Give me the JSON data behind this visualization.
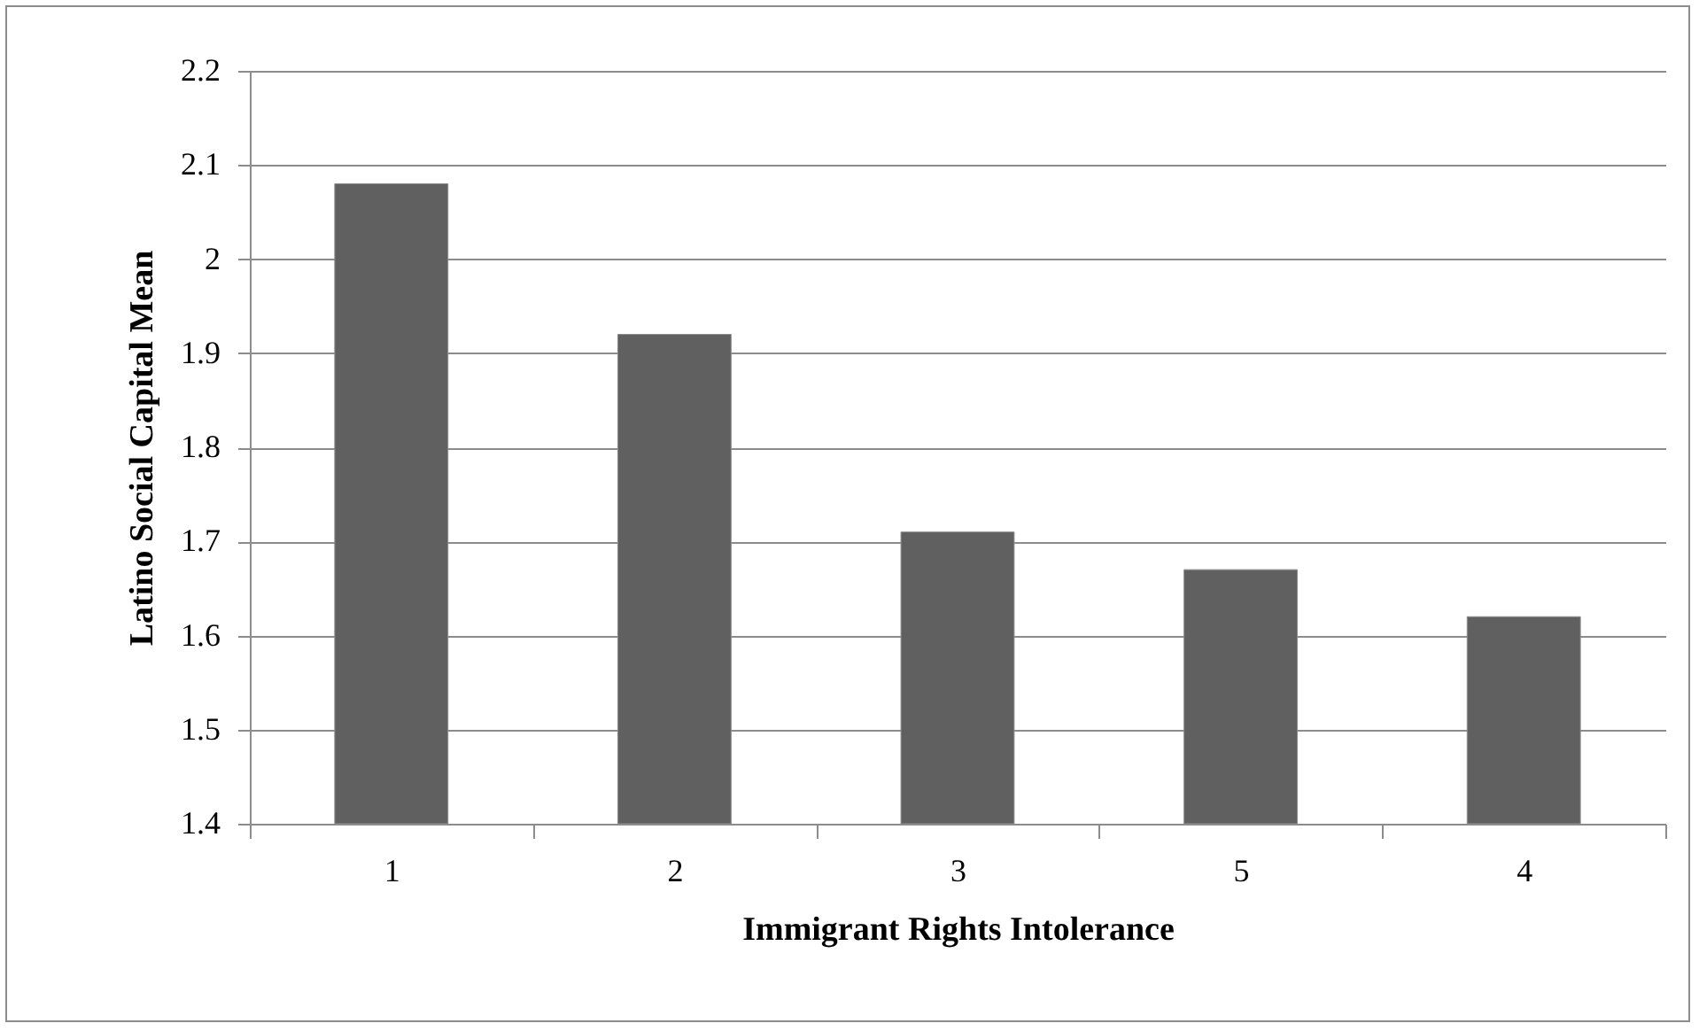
{
  "chart_data": {
    "type": "bar",
    "xlabel": "Immigrant Rights Intolerance",
    "ylabel": "Latino Social Capital Mean",
    "categories": [
      "1",
      "2",
      "3",
      "5",
      "4"
    ],
    "series": [
      {
        "color": "#606060",
        "values": [
          2.08,
          1.92,
          1.71,
          1.67,
          1.62
        ]
      }
    ],
    "ylim": [
      1.4,
      2.2
    ],
    "yticks": [
      1.4,
      1.5,
      1.6,
      1.7,
      1.8,
      1.9,
      2,
      2.1,
      2.2
    ],
    "grid": "y",
    "legend": false
  }
}
